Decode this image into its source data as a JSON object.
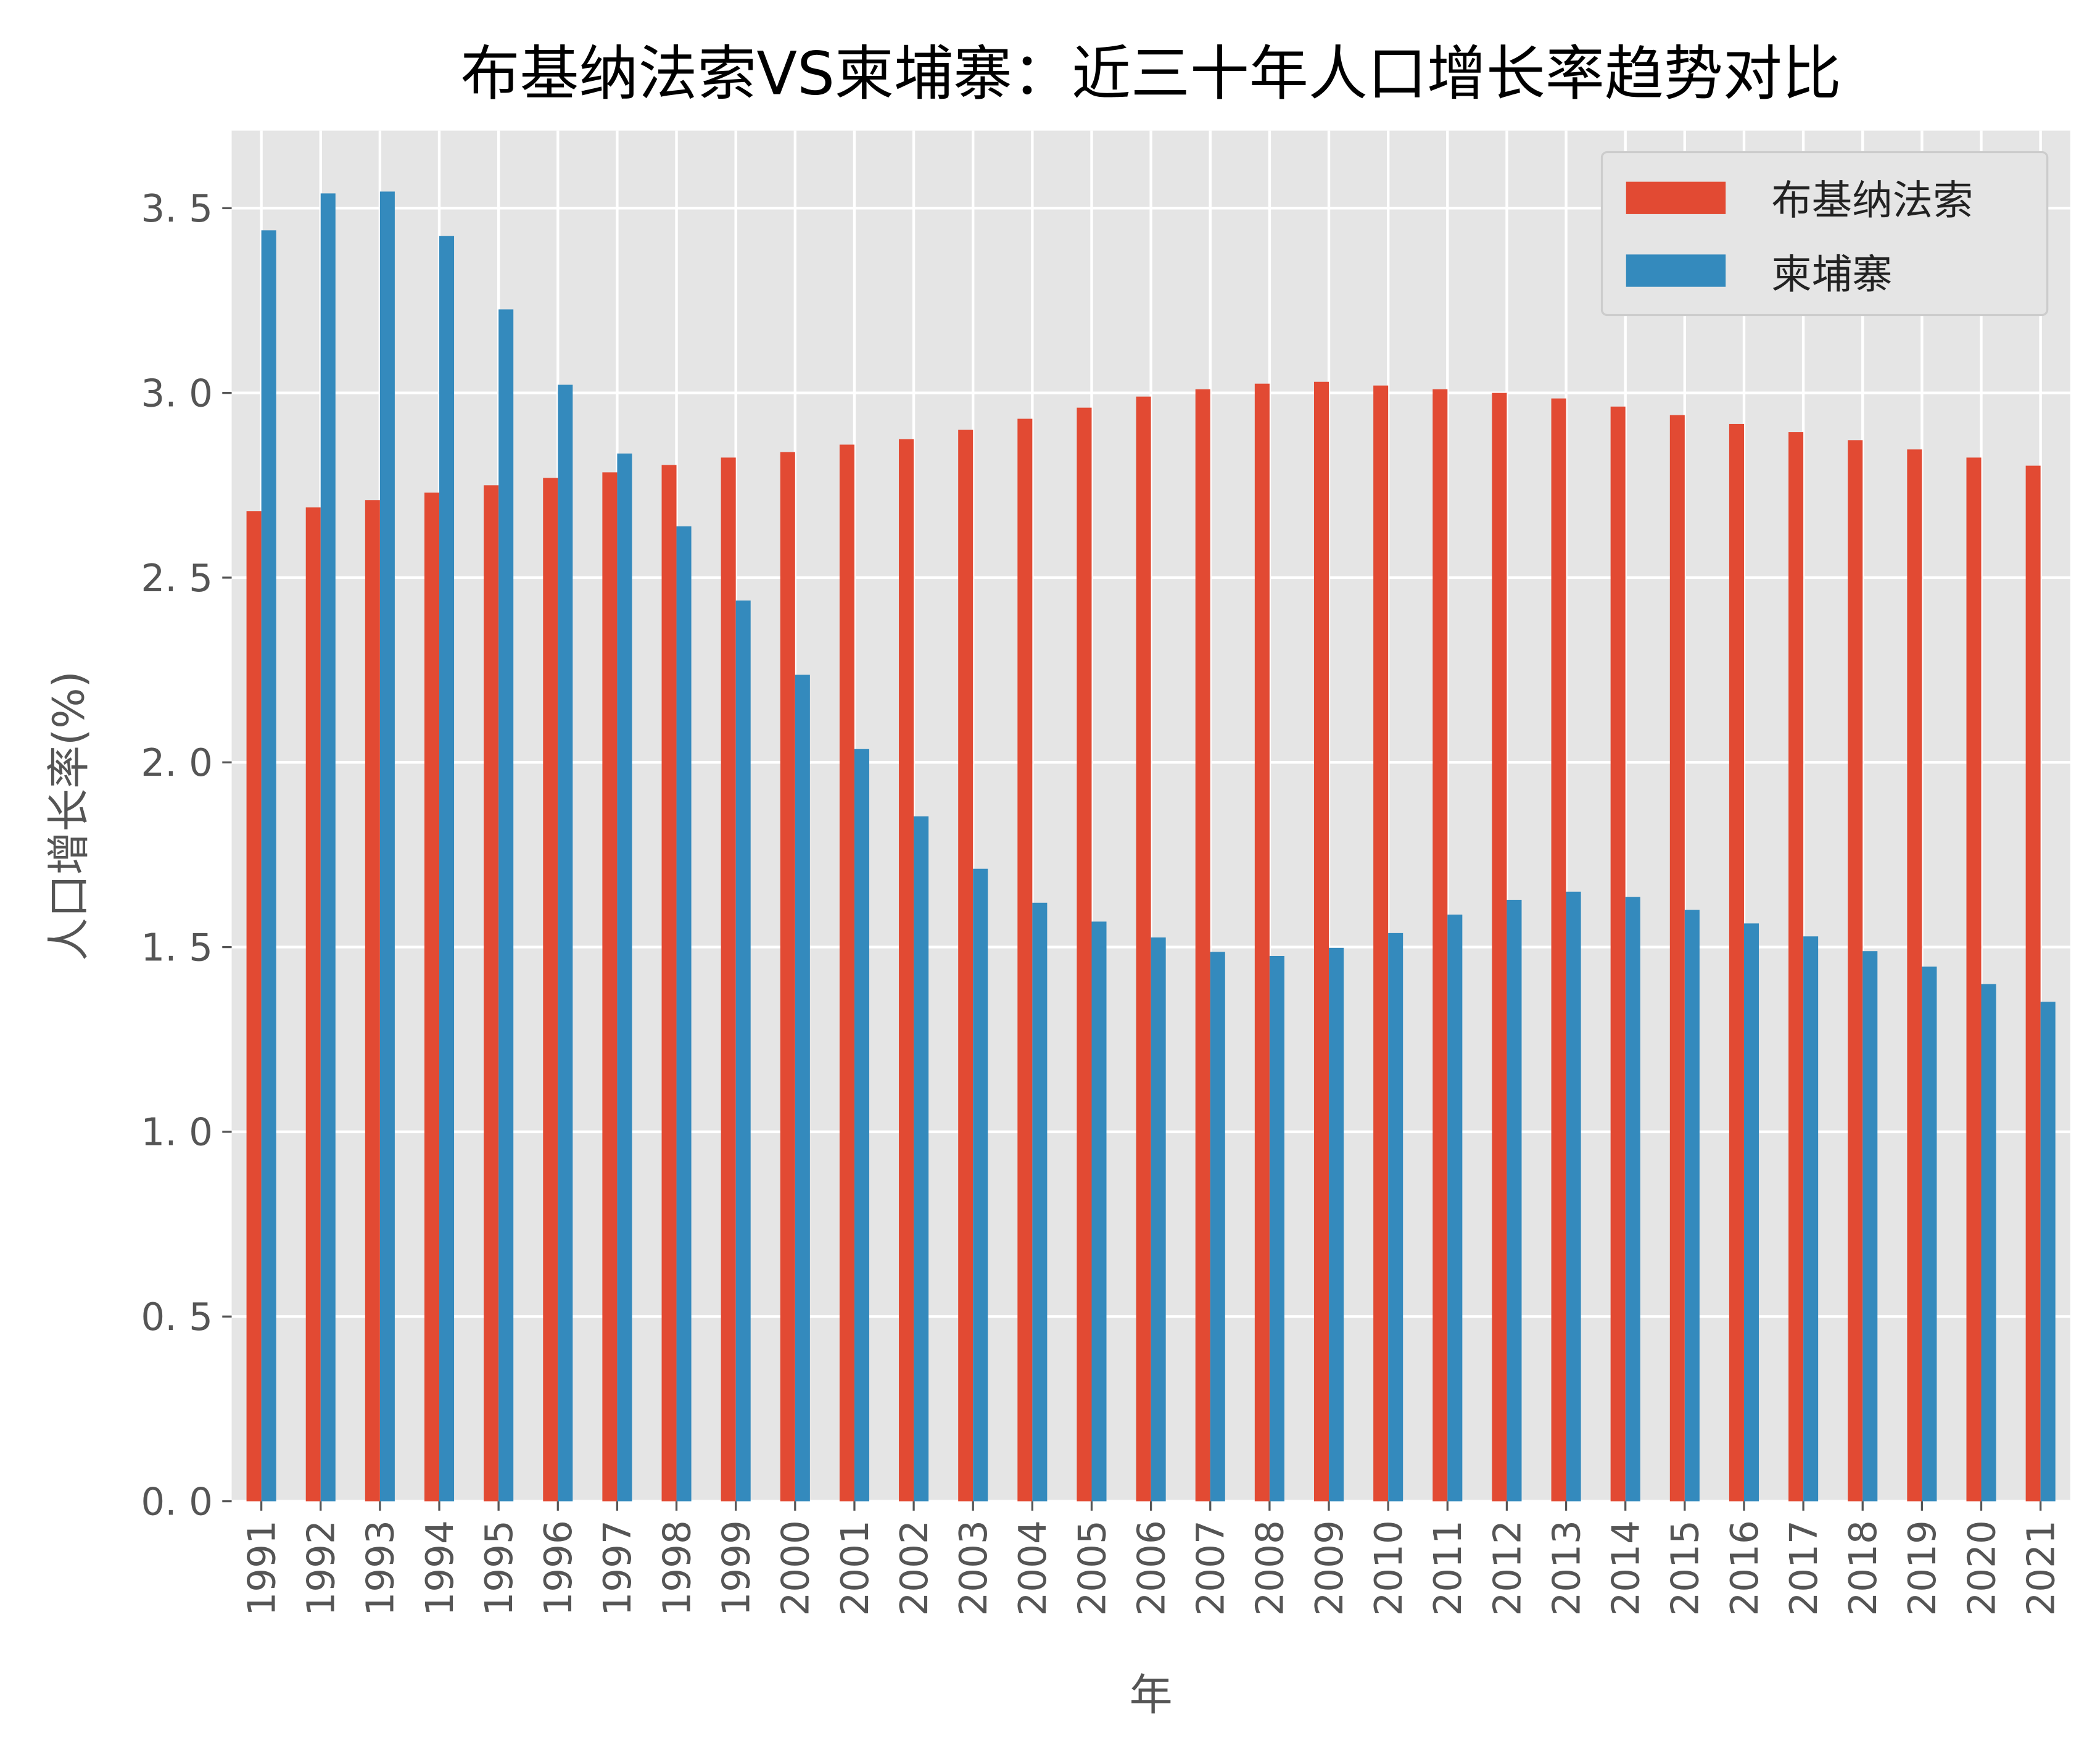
{
  "chart_data": {
    "type": "bar",
    "title": "布基纳法索VS柬埔寨：近三十年人口增长率趋势对比",
    "xlabel": "年",
    "ylabel": "人口增长率(%)",
    "ylim": [
      0,
      3.71
    ],
    "yticks": [
      "0.0",
      "0.5",
      "1.0",
      "1.5",
      "2.0",
      "2.5",
      "3.0",
      "3.5"
    ],
    "grid": true,
    "legend_position": "top-right",
    "categories": [
      "1991",
      "1992",
      "1993",
      "1994",
      "1995",
      "1996",
      "1997",
      "1998",
      "1999",
      "2000",
      "2001",
      "2002",
      "2003",
      "2004",
      "2005",
      "2006",
      "2007",
      "2008",
      "2009",
      "2010",
      "2011",
      "2012",
      "2013",
      "2014",
      "2015",
      "2016",
      "2017",
      "2018",
      "2019",
      "2020",
      "2021"
    ],
    "series": [
      {
        "name": "布基纳法索",
        "color": "#E24A33",
        "values": [
          2.68,
          2.69,
          2.71,
          2.73,
          2.75,
          2.77,
          2.785,
          2.805,
          2.825,
          2.84,
          2.86,
          2.875,
          2.9,
          2.93,
          2.96,
          2.99,
          3.01,
          3.025,
          3.03,
          3.02,
          3.01,
          3.0,
          2.985,
          2.963,
          2.94,
          2.916,
          2.894,
          2.872,
          2.847,
          2.825,
          2.803
        ]
      },
      {
        "name": "柬埔寨",
        "color": "#348ABD",
        "values": [
          3.44,
          3.54,
          3.545,
          3.425,
          3.226,
          3.022,
          2.836,
          2.639,
          2.438,
          2.237,
          2.036,
          1.854,
          1.712,
          1.62,
          1.569,
          1.526,
          1.487,
          1.476,
          1.498,
          1.538,
          1.588,
          1.628,
          1.65,
          1.636,
          1.601,
          1.564,
          1.529,
          1.489,
          1.447,
          1.4,
          1.352
        ]
      }
    ]
  }
}
